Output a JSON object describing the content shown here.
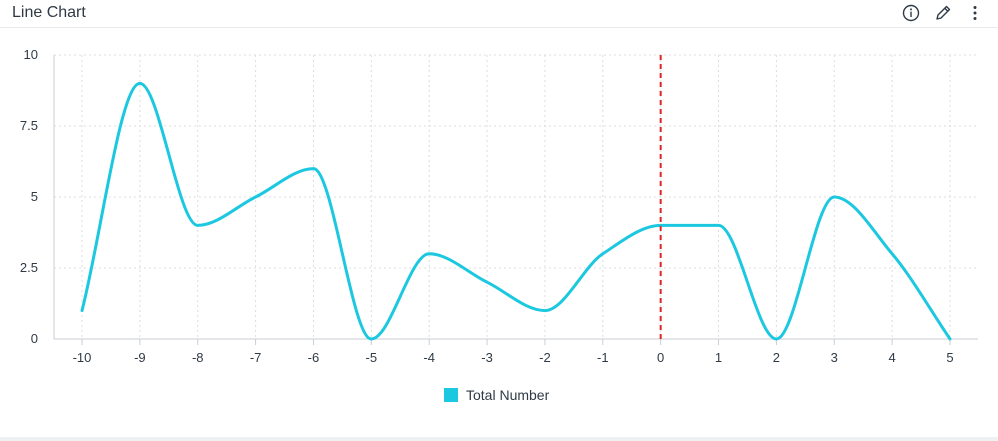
{
  "header": {
    "title": "Line Chart",
    "icons": [
      "info-icon",
      "pencil-icon",
      "more-vertical-icon"
    ]
  },
  "colors": {
    "series": "#1bc8e0",
    "reference_line": "#e02424",
    "grid": "#d9dde2",
    "axis": "#c9ced4"
  },
  "chart_data": {
    "type": "line",
    "title": "Line Chart",
    "xlabel": "",
    "ylabel": "",
    "x": [
      -10,
      -9,
      -8,
      -7,
      -6,
      -5,
      -4,
      -3,
      -2,
      -1,
      0,
      1,
      2,
      3,
      4,
      5
    ],
    "series": [
      {
        "name": "Total Number",
        "values": [
          1,
          9,
          4,
          5,
          6,
          0,
          3,
          2,
          1,
          3,
          4,
          4,
          0,
          5,
          3,
          0
        ]
      }
    ],
    "xlim": [
      -10,
      5
    ],
    "ylim": [
      0,
      10
    ],
    "x_ticks": [
      "-10",
      "-9",
      "-8",
      "-7",
      "-6",
      "-5",
      "-4",
      "-3",
      "-2",
      "-1",
      "0",
      "1",
      "2",
      "3",
      "4",
      "5"
    ],
    "y_ticks": [
      "0",
      "2.5",
      "5",
      "7.5",
      "10"
    ],
    "reference_line_x": 0,
    "grid": true,
    "legend_position": "bottom-center",
    "curve": "smooth"
  }
}
